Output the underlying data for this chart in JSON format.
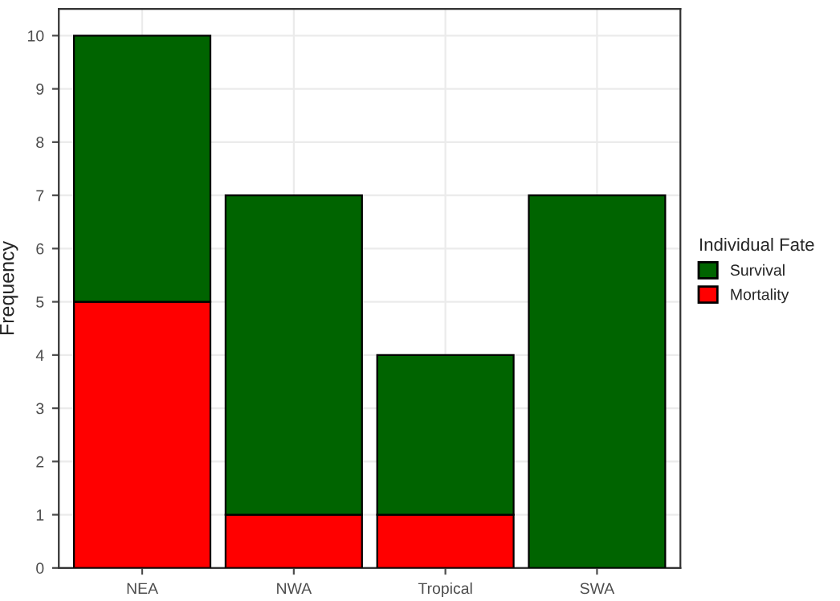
{
  "chart_data": {
    "type": "bar",
    "stacked": true,
    "ylabel": "Frequency",
    "legend_title": "Individual Fate",
    "categories": [
      "NEA",
      "NWA",
      "Tropical",
      "SWA"
    ],
    "series": [
      {
        "name": "Mortality",
        "color": "#ff0000",
        "values": [
          5,
          1,
          1,
          0
        ]
      },
      {
        "name": "Survival",
        "color": "#006400",
        "values": [
          5,
          6,
          3,
          7
        ]
      }
    ],
    "ylim": [
      0,
      10.5
    ],
    "yticks": [
      0,
      1,
      2,
      3,
      4,
      5,
      6,
      7,
      8,
      9,
      10
    ],
    "grid": true,
    "legend": "right"
  }
}
